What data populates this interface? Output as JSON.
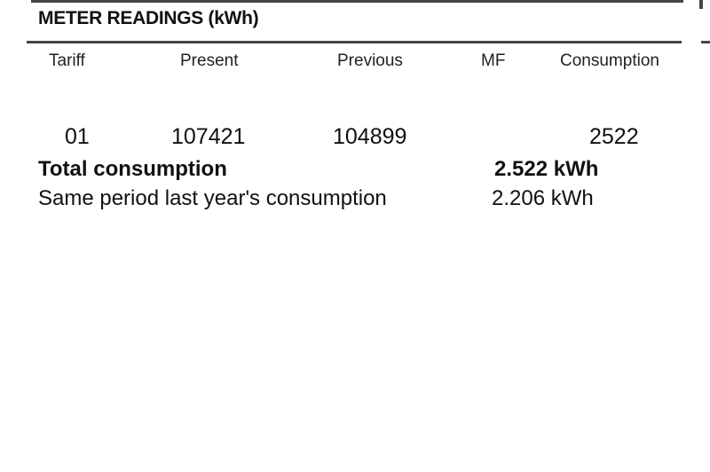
{
  "section_title": "METER READINGS (kWh)",
  "columns": [
    "Tariff",
    "Present",
    "Previous",
    "MF",
    "Consumption"
  ],
  "rows": [
    {
      "tariff": "01",
      "present": "107421",
      "previous": "104899",
      "mf": "",
      "consumption": "2522"
    }
  ],
  "total": {
    "label": "Total consumption",
    "value": "2.522 kWh"
  },
  "last_year": {
    "label": "Same period last year's consumption",
    "value": "2.206 kWh"
  }
}
